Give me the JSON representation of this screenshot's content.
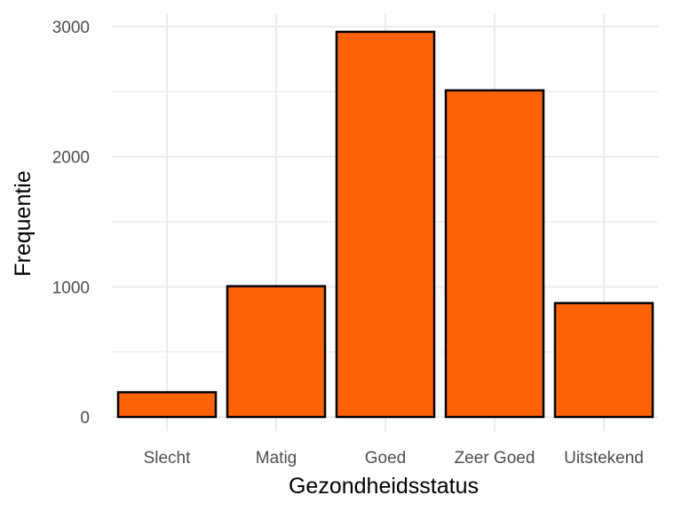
{
  "chart_data": {
    "type": "bar",
    "categories": [
      "Slecht",
      "Matig",
      "Goed",
      "Zeer Goed",
      "Uitstekend"
    ],
    "values": [
      190,
      1005,
      2960,
      2510,
      875
    ],
    "xlabel": "Gezondheidsstatus",
    "ylabel": "Frequentie",
    "ylim": [
      0,
      3000
    ],
    "yticks": [
      0,
      1000,
      2000,
      3000
    ],
    "grid": true,
    "bar_fill": "#FF6309",
    "bar_outline": "#000000"
  }
}
